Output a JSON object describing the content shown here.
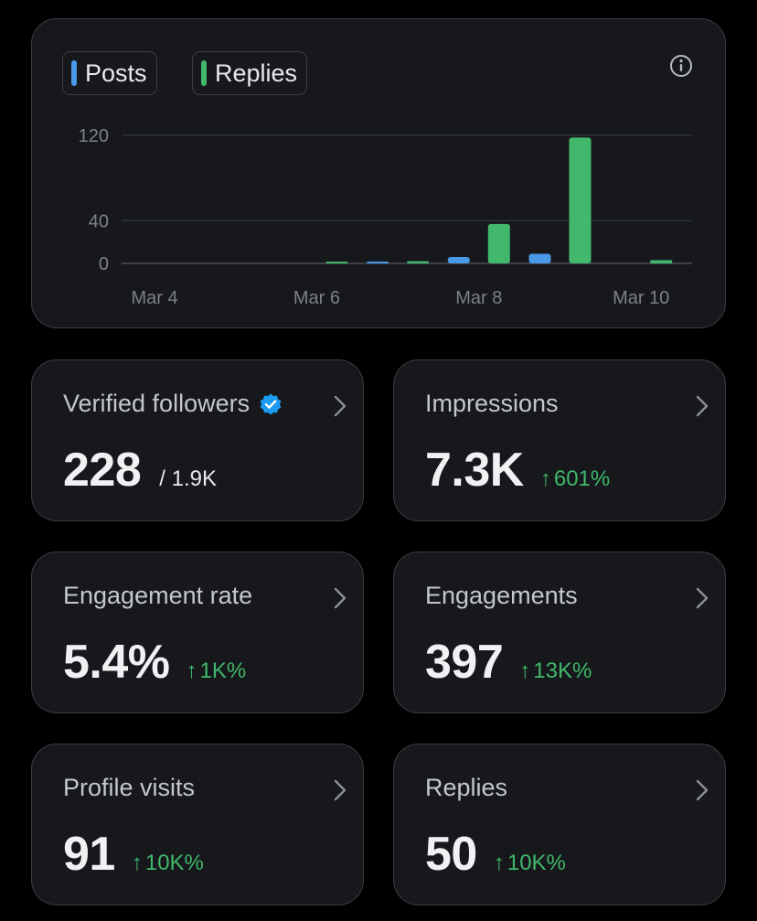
{
  "legend": {
    "posts_label": "Posts",
    "replies_label": "Replies"
  },
  "colors": {
    "posts": "#4a99e9",
    "replies": "#41b86c",
    "positive": "#3fb86a"
  },
  "chart_data": {
    "type": "bar",
    "categories": [
      "Mar 4",
      "Mar 5",
      "Mar 6",
      "Mar 7",
      "Mar 8",
      "Mar 9",
      "Mar 10"
    ],
    "series": [
      {
        "name": "Posts",
        "values": [
          0,
          0,
          0,
          1,
          6,
          9,
          0
        ]
      },
      {
        "name": "Replies",
        "values": [
          0,
          0,
          1,
          2,
          37,
          118,
          3
        ]
      }
    ],
    "x_tick_labels": [
      "Mar 4",
      "Mar 6",
      "Mar 8",
      "Mar 10"
    ],
    "y_ticks": [
      0,
      40,
      120
    ],
    "ylim": [
      0,
      120
    ],
    "grid": true,
    "legend": "top-left"
  },
  "stats": [
    {
      "label": "Verified followers",
      "value": "228",
      "sub": "/ 1.9K",
      "verified": true
    },
    {
      "label": "Impressions",
      "value": "7.3K",
      "delta": "601%"
    },
    {
      "label": "Engagement rate",
      "value": "5.4%",
      "delta": "1K%"
    },
    {
      "label": "Engagements",
      "value": "397",
      "delta": "13K%"
    },
    {
      "label": "Profile visits",
      "value": "91",
      "delta": "10K%"
    },
    {
      "label": "Replies",
      "value": "50",
      "delta": "10K%"
    }
  ],
  "icons": {
    "info": "info-icon",
    "chevron": "chevron-right-icon",
    "verified": "verified-badge-icon",
    "arrow": "arrow-up-icon"
  }
}
